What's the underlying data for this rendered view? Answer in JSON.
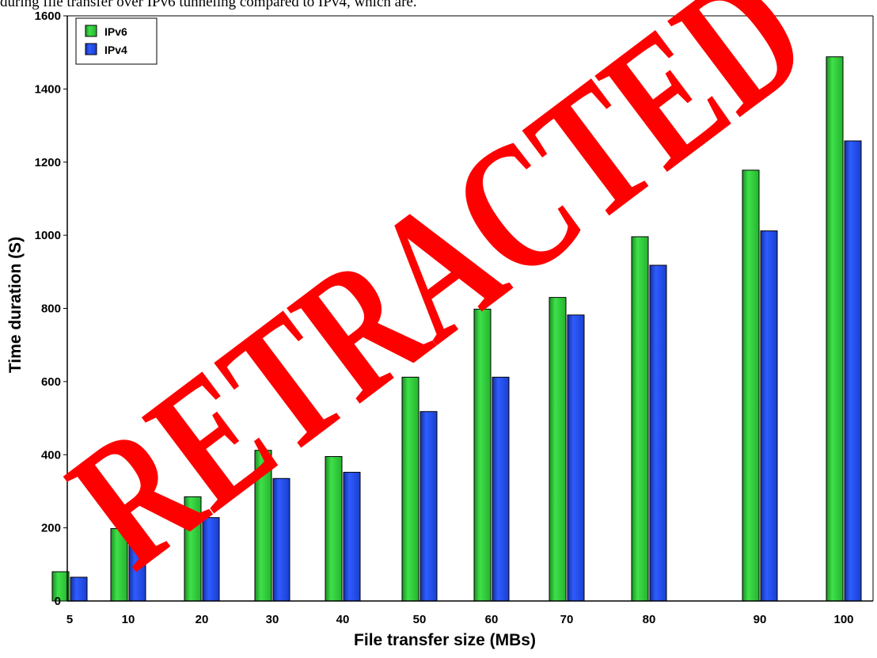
{
  "caption_fragment": "during file transfer over IPv6 tunneling compared to IPv4, which are.",
  "watermark": {
    "text": "RETRACTED",
    "color": "#ff0000"
  },
  "colors": {
    "ipv6": "#2fc83a",
    "ipv4": "#1f43e0",
    "axis": "#000000",
    "watermark": "#ff0000"
  },
  "chart_data": {
    "type": "bar",
    "xlabel": "File transfer size (MBs)",
    "ylabel": "Time duration (S)",
    "categories": [
      "5",
      "10",
      "20",
      "30",
      "40",
      "50",
      "60",
      "70",
      "80",
      "90",
      "100"
    ],
    "series": [
      {
        "name": "IPv6",
        "color": "#2fc83a",
        "values": [
          80,
          198,
          285,
          412,
          395,
          612,
          798,
          830,
          996,
          1178,
          1488
        ]
      },
      {
        "name": "IPv4",
        "color": "#1f43e0",
        "values": [
          65,
          178,
          228,
          335,
          352,
          518,
          612,
          782,
          918,
          1012,
          1258
        ]
      }
    ],
    "ylim": [
      0,
      1600
    ],
    "yticks": [
      0,
      200,
      400,
      600,
      800,
      1000,
      1200,
      1400,
      1600
    ],
    "legend": "top-left",
    "grid": false
  }
}
